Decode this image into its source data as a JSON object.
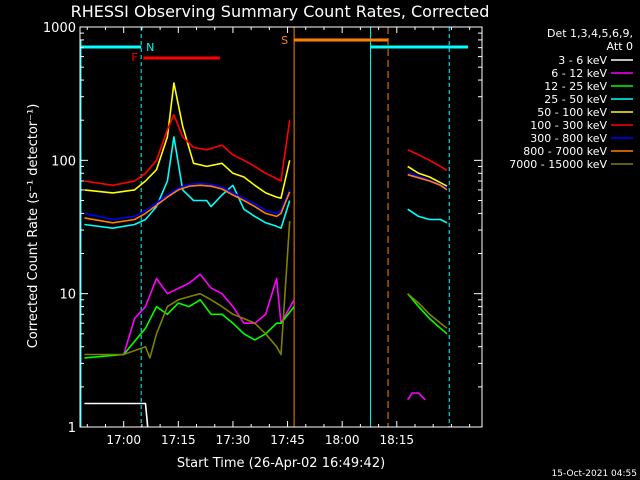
{
  "chart_data": {
    "type": "line",
    "title": "RHESSI Observing Summary Count Rates, Corrected",
    "xlabel": "Start Time (26-Apr-02 16:49:42)",
    "ylabel": "Corrected Count Rate (s⁻¹ detector⁻¹)",
    "yscale": "log",
    "ylim": [
      1,
      1000
    ],
    "xlim": [
      16.8,
      18.64
    ],
    "x_unit": "hours UT",
    "x_ticks": [
      17.0,
      17.25,
      17.5,
      17.75,
      18.0,
      18.25
    ],
    "x_tick_labels": [
      "17:00",
      "17:15",
      "17:30",
      "17:45",
      "18:00",
      "18:15"
    ],
    "y_ticks": [
      1,
      10,
      100,
      1000
    ],
    "y_tick_labels": [
      "1",
      "10",
      "100",
      "1000"
    ],
    "legend": {
      "position": "top-right",
      "header": [
        "Det 1,3,4,5,6,9,",
        "Att 0"
      ],
      "entries": [
        {
          "label": "3 - 6 keV",
          "color": "#ffffff"
        },
        {
          "label": "6 - 12 keV",
          "color": "#ff00ff"
        },
        {
          "label": "12 - 25 keV",
          "color": "#00ff00"
        },
        {
          "label": "25 - 50 keV",
          "color": "#00ffff"
        },
        {
          "label": "50 - 100 keV",
          "color": "#ffff00"
        },
        {
          "label": "100 - 300 keV",
          "color": "#ff0000"
        },
        {
          "label": "300 - 800 keV",
          "color": "#0000ff"
        },
        {
          "label": "800 - 7000 keV",
          "color": "#ff8000"
        },
        {
          "label": "7000 - 15000 keV",
          "color": "#808000"
        }
      ]
    },
    "series": [
      {
        "label": "3 - 6 keV",
        "color": "#ffffff",
        "points": [
          [
            16.82,
            1.5
          ],
          [
            17.0,
            1.5
          ],
          [
            17.1,
            1.5
          ],
          [
            17.11,
            1.0
          ]
        ]
      },
      {
        "label": "6 - 12 keV",
        "color": "#ff00ff",
        "points": [
          [
            17.0,
            3.5
          ],
          [
            17.05,
            6.5
          ],
          [
            17.1,
            8
          ],
          [
            17.15,
            13
          ],
          [
            17.2,
            10
          ],
          [
            17.3,
            12
          ],
          [
            17.35,
            14
          ],
          [
            17.4,
            11
          ],
          [
            17.45,
            10
          ],
          [
            17.5,
            8
          ],
          [
            17.55,
            6
          ],
          [
            17.6,
            6
          ],
          [
            17.65,
            7
          ],
          [
            17.7,
            13
          ],
          [
            17.72,
            6
          ],
          [
            17.78,
            9
          ],
          [
            18.3,
            1.6
          ],
          [
            18.32,
            1.8
          ],
          [
            18.35,
            1.8
          ],
          [
            18.38,
            1.6
          ]
        ]
      },
      {
        "label": "12 - 25 keV",
        "color": "#00ff00",
        "points": [
          [
            16.82,
            3.3
          ],
          [
            17.0,
            3.5
          ],
          [
            17.1,
            5.5
          ],
          [
            17.15,
            8
          ],
          [
            17.2,
            7
          ],
          [
            17.25,
            8.5
          ],
          [
            17.3,
            8
          ],
          [
            17.35,
            9
          ],
          [
            17.4,
            7
          ],
          [
            17.45,
            7
          ],
          [
            17.5,
            6
          ],
          [
            17.55,
            5
          ],
          [
            17.6,
            4.5
          ],
          [
            17.65,
            5
          ],
          [
            17.7,
            6
          ],
          [
            17.72,
            6
          ],
          [
            17.78,
            8
          ],
          [
            18.3,
            10
          ],
          [
            18.35,
            8
          ],
          [
            18.4,
            6.5
          ],
          [
            18.45,
            5.5
          ],
          [
            18.48,
            5
          ]
        ]
      },
      {
        "label": "25 - 50 keV",
        "color": "#00ffff",
        "points": [
          [
            16.82,
            33
          ],
          [
            16.95,
            31
          ],
          [
            17.05,
            33
          ],
          [
            17.1,
            36
          ],
          [
            17.15,
            45
          ],
          [
            17.2,
            70
          ],
          [
            17.23,
            150
          ],
          [
            17.27,
            60
          ],
          [
            17.32,
            50
          ],
          [
            17.38,
            50
          ],
          [
            17.4,
            45
          ],
          [
            17.45,
            55
          ],
          [
            17.5,
            65
          ],
          [
            17.55,
            43
          ],
          [
            17.6,
            38
          ],
          [
            17.65,
            34
          ],
          [
            17.7,
            32
          ],
          [
            17.72,
            31
          ],
          [
            17.76,
            50
          ],
          [
            18.3,
            43
          ],
          [
            18.35,
            38
          ],
          [
            18.4,
            36
          ],
          [
            18.45,
            36
          ],
          [
            18.48,
            34
          ]
        ]
      },
      {
        "label": "50 - 100 keV",
        "color": "#ffff00",
        "points": [
          [
            16.82,
            60
          ],
          [
            16.95,
            57
          ],
          [
            17.05,
            60
          ],
          [
            17.1,
            70
          ],
          [
            17.15,
            85
          ],
          [
            17.2,
            150
          ],
          [
            17.23,
            380
          ],
          [
            17.27,
            180
          ],
          [
            17.32,
            95
          ],
          [
            17.38,
            90
          ],
          [
            17.45,
            95
          ],
          [
            17.5,
            80
          ],
          [
            17.55,
            75
          ],
          [
            17.6,
            65
          ],
          [
            17.65,
            57
          ],
          [
            17.7,
            53
          ],
          [
            17.72,
            52
          ],
          [
            17.76,
            100
          ],
          [
            18.3,
            90
          ],
          [
            18.35,
            80
          ],
          [
            18.4,
            75
          ],
          [
            18.45,
            68
          ],
          [
            18.48,
            64
          ]
        ]
      },
      {
        "label": "100 - 300 keV",
        "color": "#ff0000",
        "points": [
          [
            16.82,
            70
          ],
          [
            16.95,
            65
          ],
          [
            17.05,
            70
          ],
          [
            17.1,
            80
          ],
          [
            17.15,
            100
          ],
          [
            17.2,
            170
          ],
          [
            17.23,
            220
          ],
          [
            17.27,
            150
          ],
          [
            17.32,
            125
          ],
          [
            17.38,
            120
          ],
          [
            17.45,
            130
          ],
          [
            17.5,
            110
          ],
          [
            17.55,
            100
          ],
          [
            17.6,
            90
          ],
          [
            17.65,
            80
          ],
          [
            17.7,
            73
          ],
          [
            17.72,
            70
          ],
          [
            17.76,
            200
          ],
          [
            18.3,
            120
          ],
          [
            18.35,
            110
          ],
          [
            18.4,
            100
          ],
          [
            18.45,
            90
          ],
          [
            18.48,
            84
          ]
        ]
      },
      {
        "label": "300 - 800 keV",
        "color": "#0000ff",
        "points": [
          [
            16.82,
            40
          ],
          [
            16.95,
            36
          ],
          [
            17.05,
            38
          ],
          [
            17.1,
            42
          ],
          [
            17.15,
            48
          ],
          [
            17.2,
            55
          ],
          [
            17.25,
            62
          ],
          [
            17.3,
            66
          ],
          [
            17.35,
            67
          ],
          [
            17.4,
            66
          ],
          [
            17.45,
            63
          ],
          [
            17.5,
            57
          ],
          [
            17.55,
            52
          ],
          [
            17.6,
            47
          ],
          [
            17.65,
            42
          ],
          [
            17.7,
            40
          ],
          [
            17.72,
            42
          ],
          [
            17.76,
            60
          ],
          [
            18.3,
            80
          ],
          [
            18.35,
            76
          ],
          [
            18.4,
            71
          ],
          [
            18.45,
            66
          ],
          [
            18.48,
            62
          ]
        ]
      },
      {
        "label": "800 - 7000 keV",
        "color": "#ff8000",
        "points": [
          [
            16.82,
            37
          ],
          [
            16.95,
            34
          ],
          [
            17.05,
            36
          ],
          [
            17.1,
            40
          ],
          [
            17.15,
            46
          ],
          [
            17.2,
            53
          ],
          [
            17.25,
            60
          ],
          [
            17.3,
            64
          ],
          [
            17.35,
            65
          ],
          [
            17.4,
            64
          ],
          [
            17.45,
            61
          ],
          [
            17.5,
            55
          ],
          [
            17.55,
            50
          ],
          [
            17.6,
            45
          ],
          [
            17.65,
            40
          ],
          [
            17.7,
            38
          ],
          [
            17.72,
            40
          ],
          [
            17.76,
            58
          ],
          [
            18.3,
            78
          ],
          [
            18.35,
            74
          ],
          [
            18.4,
            70
          ],
          [
            18.45,
            65
          ],
          [
            18.48,
            60
          ]
        ]
      },
      {
        "label": "7000 - 15000 keV",
        "color": "#808000",
        "points": [
          [
            16.82,
            3.5
          ],
          [
            17.0,
            3.5
          ],
          [
            17.1,
            4
          ],
          [
            17.12,
            3.3
          ],
          [
            17.15,
            5
          ],
          [
            17.2,
            8
          ],
          [
            17.25,
            9
          ],
          [
            17.3,
            9.5
          ],
          [
            17.35,
            10
          ],
          [
            17.4,
            9
          ],
          [
            17.45,
            8
          ],
          [
            17.5,
            7
          ],
          [
            17.55,
            6.5
          ],
          [
            17.6,
            6
          ],
          [
            17.65,
            5
          ],
          [
            17.7,
            4
          ],
          [
            17.72,
            3.5
          ],
          [
            17.76,
            35
          ],
          [
            18.3,
            10
          ],
          [
            18.35,
            8.5
          ],
          [
            18.4,
            7
          ],
          [
            18.45,
            6
          ],
          [
            18.48,
            5.5
          ]
        ]
      }
    ],
    "annotations": [
      {
        "label": "N",
        "color": "#00ffff"
      },
      {
        "label": "F",
        "color": "#ff0000"
      },
      {
        "label": "S",
        "color": "#ff8000"
      }
    ],
    "footer": "15-Oct-2021 04:55"
  }
}
